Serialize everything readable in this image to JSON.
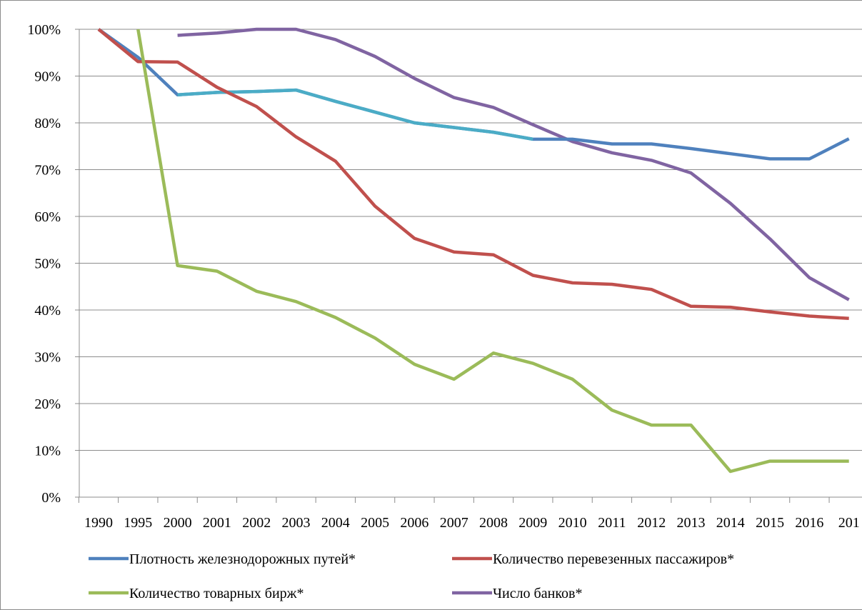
{
  "chart_data": {
    "type": "line",
    "title": "",
    "xlabel": "",
    "ylabel": "",
    "categories": [
      "1990",
      "1995",
      "2000",
      "2001",
      "2002",
      "2003",
      "2004",
      "2005",
      "2006",
      "2007",
      "2008",
      "2009",
      "2010",
      "2011",
      "2012",
      "2013",
      "2014",
      "2015",
      "2016",
      "201"
    ],
    "y_tick_labels": [
      "0%",
      "10%",
      "20%",
      "30%",
      "40%",
      "50%",
      "60%",
      "70%",
      "80%",
      "90%",
      "100%"
    ],
    "ylim": [
      0,
      100
    ],
    "grid": "horizontal",
    "legend_position": "bottom",
    "series": [
      {
        "name": "Плотность железнодорожных путей*",
        "color": "#4f81bd",
        "values": [
          100,
          94,
          86,
          86.5,
          86.7,
          87,
          84.6,
          82.3,
          80,
          79,
          78,
          76.5,
          76.5,
          75.5,
          75.5,
          74.5,
          73.4,
          72.3,
          72.3,
          76.6
        ],
        "highlight_segment": {
          "from_index": 2,
          "to_index": 11,
          "color": "#4bacc6"
        }
      },
      {
        "name": "Количество перевезенных пассажиров*",
        "color": "#c0504d",
        "values": [
          100,
          93.1,
          93,
          87.6,
          83.5,
          77,
          71.8,
          62.2,
          55.3,
          52.4,
          51.8,
          47.4,
          45.8,
          45.5,
          44.4,
          40.8,
          40.6,
          39.6,
          38.7,
          38.2
        ]
      },
      {
        "name": "Количество товарных бирж*",
        "color": "#9bbb59",
        "values": [
          null,
          100,
          49.5,
          48.3,
          44,
          41.8,
          38.4,
          34,
          28.4,
          25.2,
          30.8,
          28.6,
          25.2,
          18.6,
          15.4,
          15.4,
          5.5,
          7.7,
          7.7,
          7.7
        ]
      },
      {
        "name": "Число банков*",
        "color": "#8064a2",
        "values": [
          null,
          null,
          98.7,
          99.2,
          100,
          100,
          97.8,
          94.2,
          89.5,
          85.4,
          83.3,
          79.6,
          76,
          73.6,
          72,
          69.3,
          62.8,
          55.2,
          46.9,
          42.2
        ]
      }
    ]
  }
}
